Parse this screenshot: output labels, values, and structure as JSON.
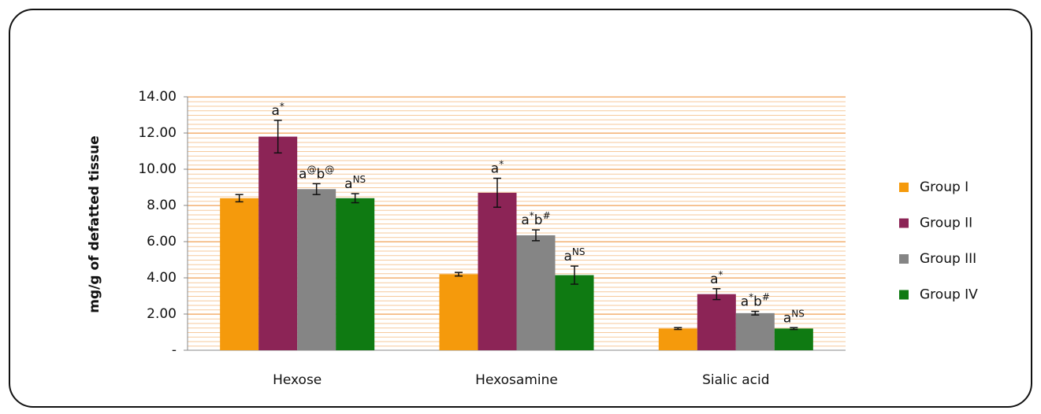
{
  "chart_data": {
    "type": "bar",
    "y_label": "mg/g  of defatted tissue",
    "categories": [
      "Hexose",
      "Hexosamine",
      "Sialic acid"
    ],
    "series": [
      {
        "name": "Group I",
        "color": "#f59a0c",
        "values": [
          8.4,
          4.2,
          1.2
        ],
        "errors": [
          0.2,
          0.1,
          0.05
        ]
      },
      {
        "name": "Group II",
        "color": "#8c2456",
        "values": [
          11.8,
          8.7,
          3.1
        ],
        "errors": [
          0.9,
          0.8,
          0.3
        ],
        "labels": [
          [
            "a",
            "*"
          ],
          [
            "a",
            "*"
          ],
          [
            "a",
            "*"
          ]
        ]
      },
      {
        "name": "Group III",
        "color": "#858585",
        "values": [
          8.9,
          6.35,
          2.05
        ],
        "errors": [
          0.3,
          0.3,
          0.1
        ],
        "labels": [
          [
            "a",
            "@",
            "b",
            "@"
          ],
          [
            "a",
            "*",
            "b",
            "#"
          ],
          [
            "a",
            "*",
            "b",
            "#"
          ]
        ]
      },
      {
        "name": "Group IV",
        "color": "#0f7a12",
        "values": [
          8.4,
          4.15,
          1.2
        ],
        "errors": [
          0.25,
          0.5,
          0.05
        ],
        "labels": [
          [
            "a",
            "NS"
          ],
          [
            "a",
            "NS"
          ],
          [
            "a",
            "NS"
          ]
        ]
      }
    ],
    "ylim": [
      0,
      14
    ],
    "yticks": [
      {
        "value": 0,
        "label": "-"
      },
      {
        "value": 2,
        "label": "2.00"
      },
      {
        "value": 4,
        "label": "4.00"
      },
      {
        "value": 6,
        "label": "6.00"
      },
      {
        "value": 8,
        "label": "8.00"
      },
      {
        "value": 10,
        "label": "10.00"
      },
      {
        "value": 12,
        "label": "12.00"
      },
      {
        "value": 14,
        "label": "14.00"
      }
    ],
    "grid": true,
    "legend": "right"
  }
}
